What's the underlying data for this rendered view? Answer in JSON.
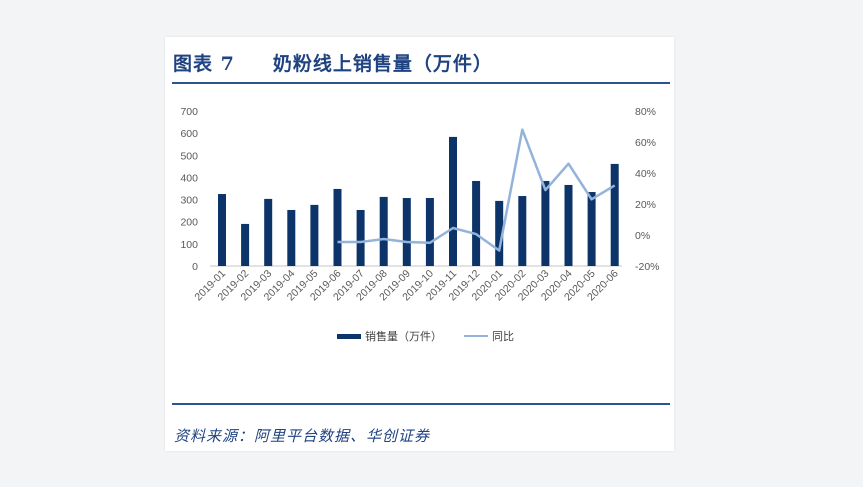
{
  "header": {
    "figure_label": "图表 7",
    "title": "奶粉线上销售量（万件）"
  },
  "footer": {
    "source": "资料来源：阿里平台数据、华创证券"
  },
  "legend": {
    "bar_label": "销售量（万件）",
    "line_label": "同比"
  },
  "colors": {
    "bar": "#0c3468",
    "line": "#94b3da",
    "title": "#1f4280",
    "rule": "#2a5592",
    "axis": "#d9d9d9"
  },
  "chart_data": {
    "type": "bar+line",
    "title": "奶粉线上销售量（万件）",
    "categories": [
      "2019-01",
      "2019-02",
      "2019-03",
      "2019-04",
      "2019-05",
      "2019-06",
      "2019-07",
      "2019-08",
      "2019-09",
      "2019-10",
      "2019-11",
      "2019-12",
      "2020-01",
      "2020-02",
      "2020-03",
      "2020-04",
      "2020-05",
      "2020-06"
    ],
    "series": [
      {
        "name": "销售量（万件）",
        "type": "bar",
        "axis": "left",
        "values": [
          325,
          190,
          303,
          253,
          276,
          348,
          253,
          312,
          307,
          307,
          583,
          384,
          294,
          316,
          384,
          366,
          334,
          461
        ]
      },
      {
        "name": "同比",
        "type": "line",
        "axis": "right",
        "unit": "%",
        "values": [
          null,
          null,
          null,
          null,
          null,
          -4.5,
          -4.5,
          -2.6,
          -4.5,
          -5.0,
          4.5,
          0.6,
          -10.0,
          68.0,
          29.0,
          46.0,
          23.0,
          32.0
        ]
      }
    ],
    "left_axis": {
      "ylim": [
        0,
        700
      ],
      "ticks": [
        0,
        100,
        200,
        300,
        400,
        500,
        600,
        700
      ]
    },
    "right_axis": {
      "ylim": [
        -20,
        80
      ],
      "ticks": [
        "-20%",
        "0%",
        "20%",
        "40%",
        "60%",
        "80%"
      ]
    },
    "xlabel": "",
    "ylabel": "",
    "grid": false,
    "legend_position": "bottom"
  }
}
